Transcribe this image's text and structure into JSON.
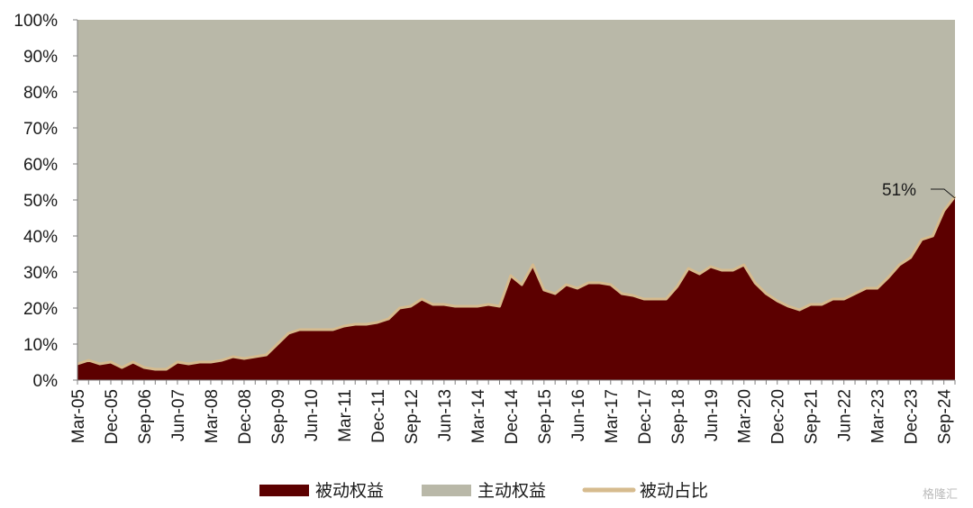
{
  "chart_data": {
    "type": "area",
    "x_start": "Mar-05",
    "x_step_months": 3,
    "x_tick_labels": [
      "Mar-05",
      "Dec-05",
      "Sep-06",
      "Jun-07",
      "Mar-08",
      "Dec-08",
      "Sep-09",
      "Jun-10",
      "Mar-11",
      "Dec-11",
      "Sep-12",
      "Jun-13",
      "Mar-14",
      "Dec-14",
      "Sep-15",
      "Jun-16",
      "Mar-17",
      "Dec-17",
      "Sep-18",
      "Jun-19",
      "Mar-20",
      "Dec-20",
      "Sep-21",
      "Jun-22",
      "Mar-23",
      "Dec-23",
      "Sep-24"
    ],
    "y_tick_labels": [
      "0%",
      "10%",
      "20%",
      "30%",
      "40%",
      "50%",
      "60%",
      "70%",
      "80%",
      "90%",
      "100%"
    ],
    "ylim": [
      0,
      100
    ],
    "passive_share_pct": [
      4.5,
      5.5,
      4.5,
      5,
      3.5,
      5,
      3.5,
      3,
      3,
      5,
      4.5,
      5,
      5,
      5.5,
      6.5,
      6,
      6.5,
      7,
      10,
      13,
      14,
      14,
      14,
      14,
      15,
      15.5,
      15.5,
      16,
      17,
      20,
      20.5,
      22.5,
      21,
      21,
      20.5,
      20.5,
      20.5,
      21,
      20.5,
      29,
      26.5,
      32,
      25,
      24,
      26.5,
      25.5,
      27,
      27,
      26.5,
      24,
      23.5,
      22.5,
      22.5,
      22.5,
      26,
      31,
      29.5,
      31.5,
      30.5,
      30.5,
      32,
      27,
      24,
      22,
      20.5,
      19.5,
      21,
      21,
      22.5,
      22.5,
      24,
      25.5,
      25.5,
      28.5,
      32,
      34,
      39,
      40,
      47,
      51
    ],
    "series": [
      {
        "name": "被动权益",
        "color": "#5c0000",
        "kind": "area"
      },
      {
        "name": "主动权益",
        "color": "#b9b8a8",
        "kind": "area"
      },
      {
        "name": "被动占比",
        "color": "#d6bb8e",
        "kind": "line"
      }
    ],
    "annotation": "51%",
    "legend_position": "bottom"
  },
  "watermark": "格隆汇"
}
